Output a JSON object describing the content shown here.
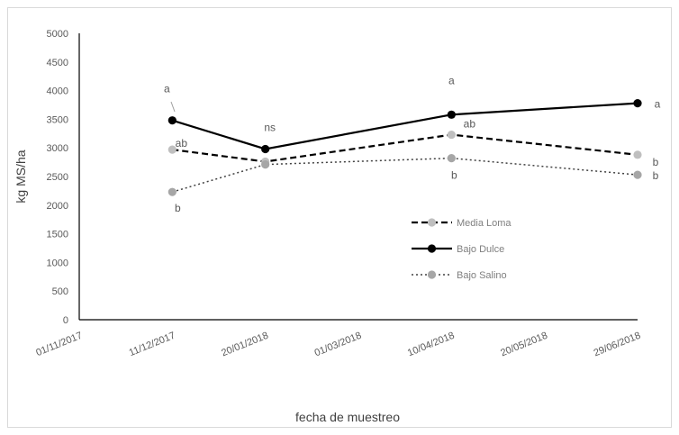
{
  "chart_data": {
    "type": "line",
    "xlabel": "fecha de muestreo",
    "ylabel": "kg MS/ha",
    "ylim": [
      0,
      5000
    ],
    "yticks": [
      0,
      500,
      1000,
      1500,
      2000,
      2500,
      3000,
      3500,
      4000,
      4500,
      5000
    ],
    "xlim": [
      "2017-11-01",
      "2018-06-29"
    ],
    "xticks": [
      "01/11/2017",
      "11/12/2017",
      "20/01/2018",
      "01/03/2018",
      "10/04/2018",
      "20/05/2018",
      "29/06/2018"
    ],
    "x": [
      "2017-12-11",
      "2018-01-20",
      "2018-04-10",
      "2018-06-29"
    ],
    "grid": false,
    "legend_position": "right",
    "series": [
      {
        "name": "Media Loma",
        "values": [
          2970,
          2760,
          3230,
          2880
        ],
        "color": "#000000",
        "marker_color": "#bfbfbf",
        "line_style": "dashed",
        "labels": [
          "ab",
          "",
          "ab",
          "b"
        ]
      },
      {
        "name": "Bajo Dulce",
        "values": [
          3480,
          2980,
          3580,
          3780
        ],
        "color": "#000000",
        "marker_color": "#000000",
        "line_style": "solid",
        "labels": [
          "a",
          "ns",
          "a",
          "a"
        ]
      },
      {
        "name": "Bajo Salino",
        "values": [
          2230,
          2710,
          2820,
          2530
        ],
        "color": "#404040",
        "marker_color": "#a6a6a6",
        "line_style": "dotted",
        "labels": [
          "b",
          "",
          "b",
          "b"
        ]
      }
    ]
  }
}
